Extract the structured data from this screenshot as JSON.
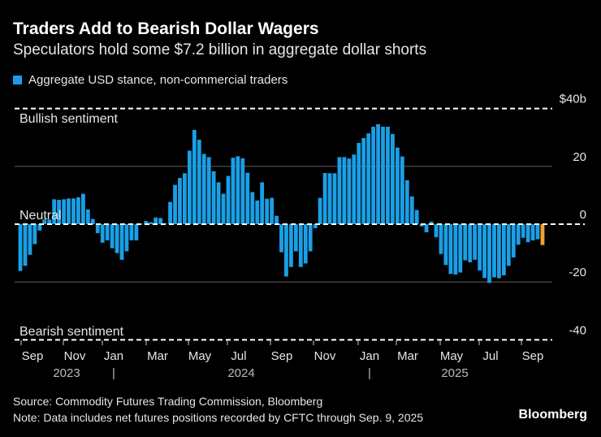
{
  "title": "Traders Add to Bearish Dollar Wagers",
  "subtitle": "Speculators hold some $7.2 billion in aggregate dollar shorts",
  "source": "Source: Commodity Futures Trading Commission, Bloomberg",
  "note": "Note: Data includes net futures positions recorded by CFTC through Sep. 9, 2025",
  "brand": "Bloomberg",
  "colors": {
    "bar": "#1a9fe6",
    "latest": "#f5a033",
    "background": "#000000"
  },
  "chart_data": {
    "type": "bar",
    "legend": [
      {
        "name": "Aggregate USD stance, non-commercial traders",
        "color": "#1a9fe6"
      }
    ],
    "legend_position": "top-left",
    "annotations": [
      {
        "label": "Bullish sentiment",
        "y": 40
      },
      {
        "label": "Neutral",
        "y": 0
      },
      {
        "label": "Bearish sentiment",
        "y": -40
      }
    ],
    "ylim": [
      -40,
      40
    ],
    "y_ticks": [
      {
        "value": 40,
        "label": "$40b"
      },
      {
        "value": 20,
        "label": "20"
      },
      {
        "value": 0,
        "label": "0"
      },
      {
        "value": -20,
        "label": "-20"
      },
      {
        "value": -40,
        "label": "-40"
      }
    ],
    "x_tick_labels": [
      "Sep",
      "Nov",
      "Jan",
      "Mar",
      "May",
      "Jul",
      "Sep",
      "Nov",
      "Jan",
      "Mar",
      "May",
      "Jul",
      "Sep"
    ],
    "x_year_labels": [
      "2023",
      "|",
      "2024",
      "|",
      "2025"
    ],
    "grid": true,
    "values": [
      -16.2,
      -14.4,
      -10.6,
      -6.9,
      -2.2,
      1.6,
      1.6,
      8.6,
      8.4,
      8.6,
      8.9,
      8.9,
      9.3,
      10.5,
      5.1,
      1.8,
      -3.1,
      -6.4,
      -5.6,
      -8.3,
      -10,
      -12.3,
      -9.4,
      -5.6,
      -5.6,
      0.1,
      1.1,
      0.7,
      2.3,
      2.1,
      0.2,
      7.7,
      13.6,
      16,
      17.6,
      25.4,
      32.6,
      29.2,
      24.3,
      23.2,
      18.3,
      14.5,
      10.5,
      16.7,
      23,
      23.5,
      22.8,
      17.8,
      11.1,
      8.2,
      14.5,
      8.8,
      9.1,
      2.9,
      -9.7,
      -18.1,
      -14.8,
      -9.4,
      -14.8,
      -13.6,
      -9.4,
      -1.4,
      9.1,
      17.7,
      17.6,
      17.6,
      23.2,
      23.2,
      22.7,
      24.1,
      28.1,
      29.8,
      31.4,
      33.7,
      34.6,
      33.7,
      33.7,
      31.2,
      26.5,
      23.4,
      15.2,
      9.6,
      4.9,
      -0.8,
      -2.8,
      0.9,
      -4.5,
      -10.3,
      -14.1,
      -17.2,
      -17.4,
      -16.7,
      -12.5,
      -13.2,
      -12.3,
      -16,
      -18.6,
      -20.3,
      -18.4,
      -18.7,
      -17.7,
      -14.4,
      -11.5,
      -7.1,
      -4.7,
      -6.2,
      -5.6,
      -5.2,
      -7.2
    ]
  }
}
